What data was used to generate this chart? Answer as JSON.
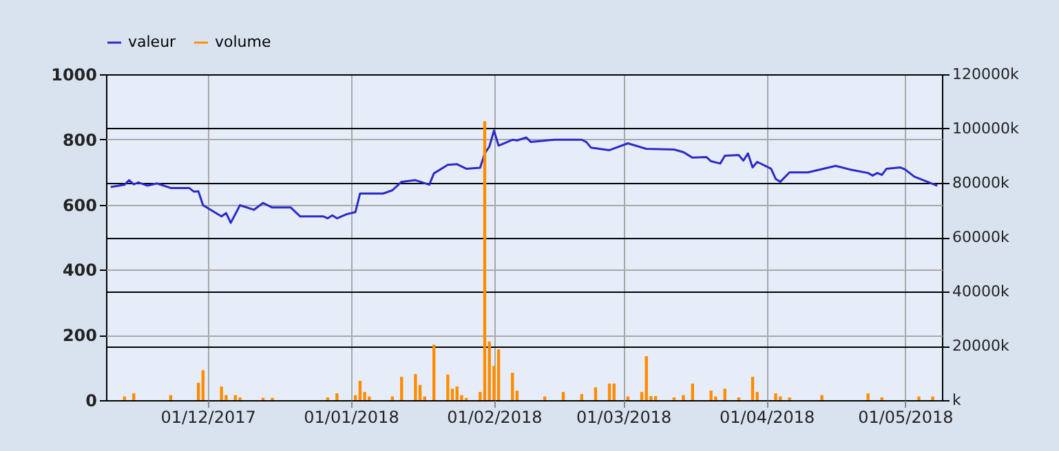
{
  "chart_data": {
    "type": "line",
    "xlim": [
      "2017-11-09",
      "2018-05-09"
    ],
    "xticks": [
      {
        "value": "2017-12-01",
        "label": "01/12/2017"
      },
      {
        "value": "2018-01-01",
        "label": "01/01/2018"
      },
      {
        "value": "2018-02-01",
        "label": "01/02/2018"
      },
      {
        "value": "2018-03-01",
        "label": "01/03/2018"
      },
      {
        "value": "2018-04-01",
        "label": "01/04/2018"
      },
      {
        "value": "2018-05-01",
        "label": "01/05/2018"
      }
    ],
    "ylim": [
      0,
      1000
    ],
    "yticks": [
      0,
      200,
      400,
      600,
      800,
      1000
    ],
    "y2lim": [
      0,
      120000
    ],
    "y2ticks": [
      {
        "value": 0,
        "label": "k"
      },
      {
        "value": 20000,
        "label": "20000k"
      },
      {
        "value": 40000,
        "label": "40000k"
      },
      {
        "value": 60000,
        "label": "60000k"
      },
      {
        "value": 80000,
        "label": "80000k"
      },
      {
        "value": 100000,
        "label": "100000k"
      },
      {
        "value": 120000,
        "label": "120000k"
      }
    ],
    "grid": true,
    "legend": "top",
    "series": [
      {
        "name": "valeur",
        "color": "#2a2ac8",
        "x": [
          "2017-11-10",
          "2017-11-13",
          "2017-11-14",
          "2017-11-15",
          "2017-11-16",
          "2017-11-18",
          "2017-11-20",
          "2017-11-23",
          "2017-11-27",
          "2017-11-28",
          "2017-11-29",
          "2017-11-30",
          "2017-12-04",
          "2017-12-05",
          "2017-12-06",
          "2017-12-08",
          "2017-12-11",
          "2017-12-13",
          "2017-12-15",
          "2017-12-19",
          "2017-12-21",
          "2017-12-26",
          "2017-12-27",
          "2017-12-28",
          "2017-12-29",
          "2017-12-31",
          "2018-01-02",
          "2018-01-03",
          "2018-01-08",
          "2018-01-10",
          "2018-01-12",
          "2018-01-15",
          "2018-01-18",
          "2018-01-19",
          "2018-01-22",
          "2018-01-24",
          "2018-01-26",
          "2018-01-29",
          "2018-01-30",
          "2018-01-31",
          "2018-02-01",
          "2018-02-02",
          "2018-02-05",
          "2018-02-06",
          "2018-02-08",
          "2018-02-09",
          "2018-02-14",
          "2018-02-20",
          "2018-02-21",
          "2018-02-22",
          "2018-02-26",
          "2018-03-02",
          "2018-03-06",
          "2018-03-12",
          "2018-03-14",
          "2018-03-16",
          "2018-03-19",
          "2018-03-20",
          "2018-03-22",
          "2018-03-23",
          "2018-03-26",
          "2018-03-27",
          "2018-03-28",
          "2018-03-29",
          "2018-03-30",
          "2018-04-02",
          "2018-04-03",
          "2018-04-04",
          "2018-04-06",
          "2018-04-10",
          "2018-04-16",
          "2018-04-19",
          "2018-04-23",
          "2018-04-24",
          "2018-04-25",
          "2018-04-26",
          "2018-04-27",
          "2018-04-30",
          "2018-05-01",
          "2018-05-03",
          "2018-05-08"
        ],
        "values": [
          654,
          661,
          675,
          662,
          668,
          658,
          665,
          651,
          651,
          640,
          641,
          598,
          564,
          574,
          544,
          598,
          584,
          605,
          591,
          591,
          564,
          564,
          558,
          567,
          558,
          570,
          577,
          634,
          634,
          644,
          670,
          675,
          661,
          696,
          722,
          724,
          710,
          713,
          757,
          778,
          827,
          781,
          799,
          797,
          806,
          792,
          799,
          799,
          792,
          775,
          767,
          788,
          771,
          769,
          761,
          744,
          746,
          733,
          726,
          750,
          752,
          735,
          757,
          714,
          731,
          710,
          679,
          670,
          699,
          699,
          719,
          708,
          697,
          689,
          697,
          691,
          710,
          714,
          708,
          686,
          658
        ]
      },
      {
        "name": "volume",
        "type": "bar",
        "axis": "y2",
        "color": "#ff8c00",
        "x": [
          "2017-11-13",
          "2017-11-15",
          "2017-11-23",
          "2017-11-29",
          "2017-11-30",
          "2017-12-04",
          "2017-12-05",
          "2017-12-07",
          "2017-12-08",
          "2017-12-13",
          "2017-12-15",
          "2017-12-27",
          "2017-12-29",
          "2018-01-02",
          "2018-01-03",
          "2018-01-04",
          "2018-01-05",
          "2018-01-10",
          "2018-01-12",
          "2018-01-15",
          "2018-01-16",
          "2018-01-17",
          "2018-01-19",
          "2018-01-22",
          "2018-01-23",
          "2018-01-24",
          "2018-01-25",
          "2018-01-26",
          "2018-01-29",
          "2018-01-30",
          "2018-01-31",
          "2018-02-01",
          "2018-02-02",
          "2018-02-05",
          "2018-02-06",
          "2018-02-12",
          "2018-02-16",
          "2018-02-20",
          "2018-02-23",
          "2018-02-26",
          "2018-02-27",
          "2018-03-02",
          "2018-03-05",
          "2018-03-06",
          "2018-03-07",
          "2018-03-08",
          "2018-03-12",
          "2018-03-14",
          "2018-03-16",
          "2018-03-20",
          "2018-03-21",
          "2018-03-23",
          "2018-03-26",
          "2018-03-29",
          "2018-03-30",
          "2018-04-03",
          "2018-04-04",
          "2018-04-06",
          "2018-04-13",
          "2018-04-23",
          "2018-04-26",
          "2018-05-04",
          "2018-05-07"
        ],
        "values": [
          1350,
          2500,
          1850,
          6400,
          11000,
          5000,
          1850,
          1850,
          1000,
          840,
          840,
          1000,
          2500,
          1850,
          7100,
          3000,
          1350,
          1350,
          8600,
          9600,
          5600,
          1350,
          20400,
          9400,
          4200,
          5000,
          1850,
          840,
          3000,
          102700,
          21600,
          12600,
          18700,
          10100,
          3500,
          1350,
          3000,
          2200,
          4700,
          6100,
          6100,
          1350,
          3000,
          16200,
          1500,
          1500,
          1000,
          1850,
          6100,
          3500,
          1350,
          4200,
          1000,
          8600,
          3000,
          2500,
          1350,
          1000,
          1850,
          2500,
          1000,
          1350,
          1350
        ]
      }
    ]
  }
}
